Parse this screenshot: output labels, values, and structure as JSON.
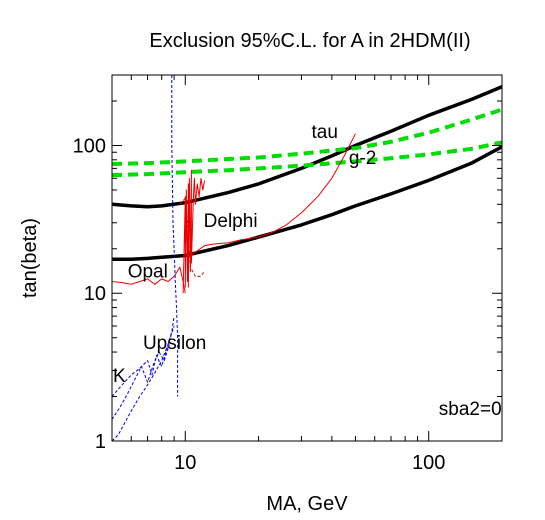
{
  "chart_data": {
    "type": "line",
    "title": "Exclusion 95%C.L. for A in 2HDM(II)",
    "xlabel": "MA,  GeV",
    "ylabel": "tan(beta)",
    "xscale": "log",
    "yscale": "log",
    "xlim": [
      5,
      200
    ],
    "ylim": [
      1,
      300
    ],
    "xticks": [
      {
        "value": 10,
        "label": "10"
      },
      {
        "value": 100,
        "label": "100"
      }
    ],
    "yticks": [
      {
        "value": 1,
        "label": "1"
      },
      {
        "value": 10,
        "label": "10"
      },
      {
        "value": 100,
        "label": "100"
      }
    ],
    "annotations": [
      {
        "text": "tau",
        "x": 33,
        "y": 112
      },
      {
        "text": "g-2",
        "x": 47,
        "y": 75
      },
      {
        "text": "Delphi",
        "x": 11.9,
        "y": 28
      },
      {
        "text": "Opal",
        "x": 5.8,
        "y": 12.8
      },
      {
        "text": "Upsilon",
        "x": 6.7,
        "y": 4.2
      },
      {
        "text": "K",
        "x": 5.05,
        "y": 2.5
      },
      {
        "text": "sba2=0",
        "x": 110,
        "y": 1.5
      }
    ],
    "series": [
      {
        "id": "black_upper",
        "color": "#000000",
        "style": "solid",
        "width": 3.5,
        "x": [
          5,
          6,
          7,
          8,
          10,
          15,
          20,
          30,
          40,
          50,
          70,
          100,
          150,
          200
        ],
        "y": [
          40,
          39,
          38.5,
          39,
          41,
          48,
          55,
          70,
          85,
          100,
          125,
          160,
          205,
          250
        ]
      },
      {
        "id": "black_lower",
        "color": "#000000",
        "style": "solid",
        "width": 3.5,
        "x": [
          5,
          6,
          7,
          8,
          10,
          15,
          20,
          30,
          40,
          50,
          70,
          100,
          150,
          200
        ],
        "y": [
          17,
          17,
          17.2,
          17.5,
          18,
          21,
          24,
          29,
          34,
          39,
          47,
          58,
          76,
          98
        ]
      },
      {
        "id": "green_upper",
        "color": "#00dd00",
        "style": "dashed",
        "width": 4,
        "x": [
          5,
          7,
          10,
          15,
          20,
          30,
          50,
          70,
          100,
          150,
          200
        ],
        "y": [
          75,
          76,
          78,
          81,
          83,
          88,
          96,
          106,
          122,
          150,
          175
        ]
      },
      {
        "id": "green_lower",
        "color": "#00dd00",
        "style": "dashed",
        "width": 4,
        "x": [
          5,
          7,
          10,
          15,
          20,
          30,
          50,
          70,
          100,
          150,
          200
        ],
        "y": [
          63,
          64,
          66,
          68,
          70,
          73,
          78,
          82,
          87,
          95,
          105
        ]
      },
      {
        "id": "red_delphi",
        "color": "#ee0000",
        "style": "solid",
        "width": 1,
        "x": [
          10.6,
          11,
          11.5,
          12,
          13,
          15,
          17,
          20,
          23,
          26,
          30,
          35,
          40,
          45,
          50
        ],
        "y": [
          18,
          19,
          20,
          21,
          21.5,
          22,
          23,
          24,
          26,
          29,
          35,
          45,
          60,
          85,
          120
        ]
      },
      {
        "id": "red_opal",
        "color": "#ee0000",
        "style": "solid",
        "width": 1,
        "x": [
          5,
          5.5,
          6,
          6.5,
          7,
          7.5,
          8,
          8.5,
          9,
          9.5,
          9.8,
          10
        ],
        "y": [
          12,
          11.8,
          11.5,
          12,
          12.5,
          11.5,
          12.5,
          12,
          13,
          15,
          12,
          10
        ]
      },
      {
        "id": "red_spikes",
        "color": "#ee0000",
        "style": "solid",
        "width": 1,
        "x": [
          9.8,
          10.0,
          10.0,
          10.1,
          10.2,
          10.3,
          10.3,
          10.4,
          10.5,
          10.6,
          10.6,
          10.8,
          10.9,
          11.0,
          11.2,
          11.4,
          11.6,
          11.8,
          12.0
        ],
        "y": [
          10,
          45,
          11,
          50,
          12,
          55,
          11,
          60,
          14,
          68,
          16,
          45,
          60,
          40,
          55,
          45,
          60,
          50,
          58
        ]
      },
      {
        "id": "red_dashed_frag",
        "color": "#ee0000",
        "style": "dashed",
        "width": 1,
        "x": [
          9.5,
          10,
          10.5,
          11,
          11.5,
          12
        ],
        "y": [
          40,
          44,
          15,
          13,
          13,
          14
        ]
      },
      {
        "id": "blue_upsilon",
        "color": "#0000ee",
        "style": "dashed",
        "width": 1,
        "x": [
          8.8,
          8.8,
          8.9,
          9.0,
          9.1,
          9.2,
          9.3,
          9.3
        ],
        "y": [
          300,
          100,
          30,
          20,
          12,
          8,
          5,
          2
        ]
      },
      {
        "id": "blue_k1",
        "color": "#0000ee",
        "style": "dashed",
        "width": 1,
        "x": [
          5.0,
          5.3,
          5.6,
          6.0,
          6.5,
          7.0,
          7.5,
          8.0,
          8.5,
          9.0
        ],
        "y": [
          1.0,
          1.1,
          1.3,
          1.6,
          2.0,
          2.4,
          2.9,
          3.5,
          4.5,
          6.0
        ]
      },
      {
        "id": "blue_k2",
        "color": "#0000ee",
        "style": "dashed",
        "width": 1,
        "x": [
          5.0,
          5.4,
          5.8,
          6.2,
          6.6,
          7.0,
          7.4,
          7.8,
          8.2,
          8.6
        ],
        "y": [
          1.4,
          1.7,
          2.1,
          2.6,
          3.2,
          2.5,
          3.3,
          4.0,
          3.5,
          4.5
        ]
      },
      {
        "id": "blue_k3",
        "color": "#0000ee",
        "style": "dashed",
        "width": 1,
        "x": [
          5.0,
          5.5,
          6.0,
          6.5,
          7.0,
          7.3,
          7.6,
          8.0,
          8.4,
          8.8,
          9.0
        ],
        "y": [
          2.0,
          2.4,
          2.8,
          3.1,
          3.5,
          2.8,
          3.8,
          3.2,
          4.2,
          5.5,
          7.0
        ]
      }
    ]
  }
}
